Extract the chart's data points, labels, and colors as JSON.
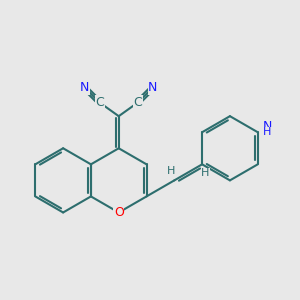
{
  "background_color": "#e8e8e8",
  "bond_color": "#2d6e6e",
  "bond_width": 1.5,
  "atom_colors": {
    "N": "#1a1aff",
    "O": "#ff0000",
    "C": "#2d6e6e",
    "H": "#2d6e6e",
    "NH": "#1a1aff"
  },
  "font_size_atom": 9,
  "font_size_H": 8,
  "font_size_NH": 9
}
